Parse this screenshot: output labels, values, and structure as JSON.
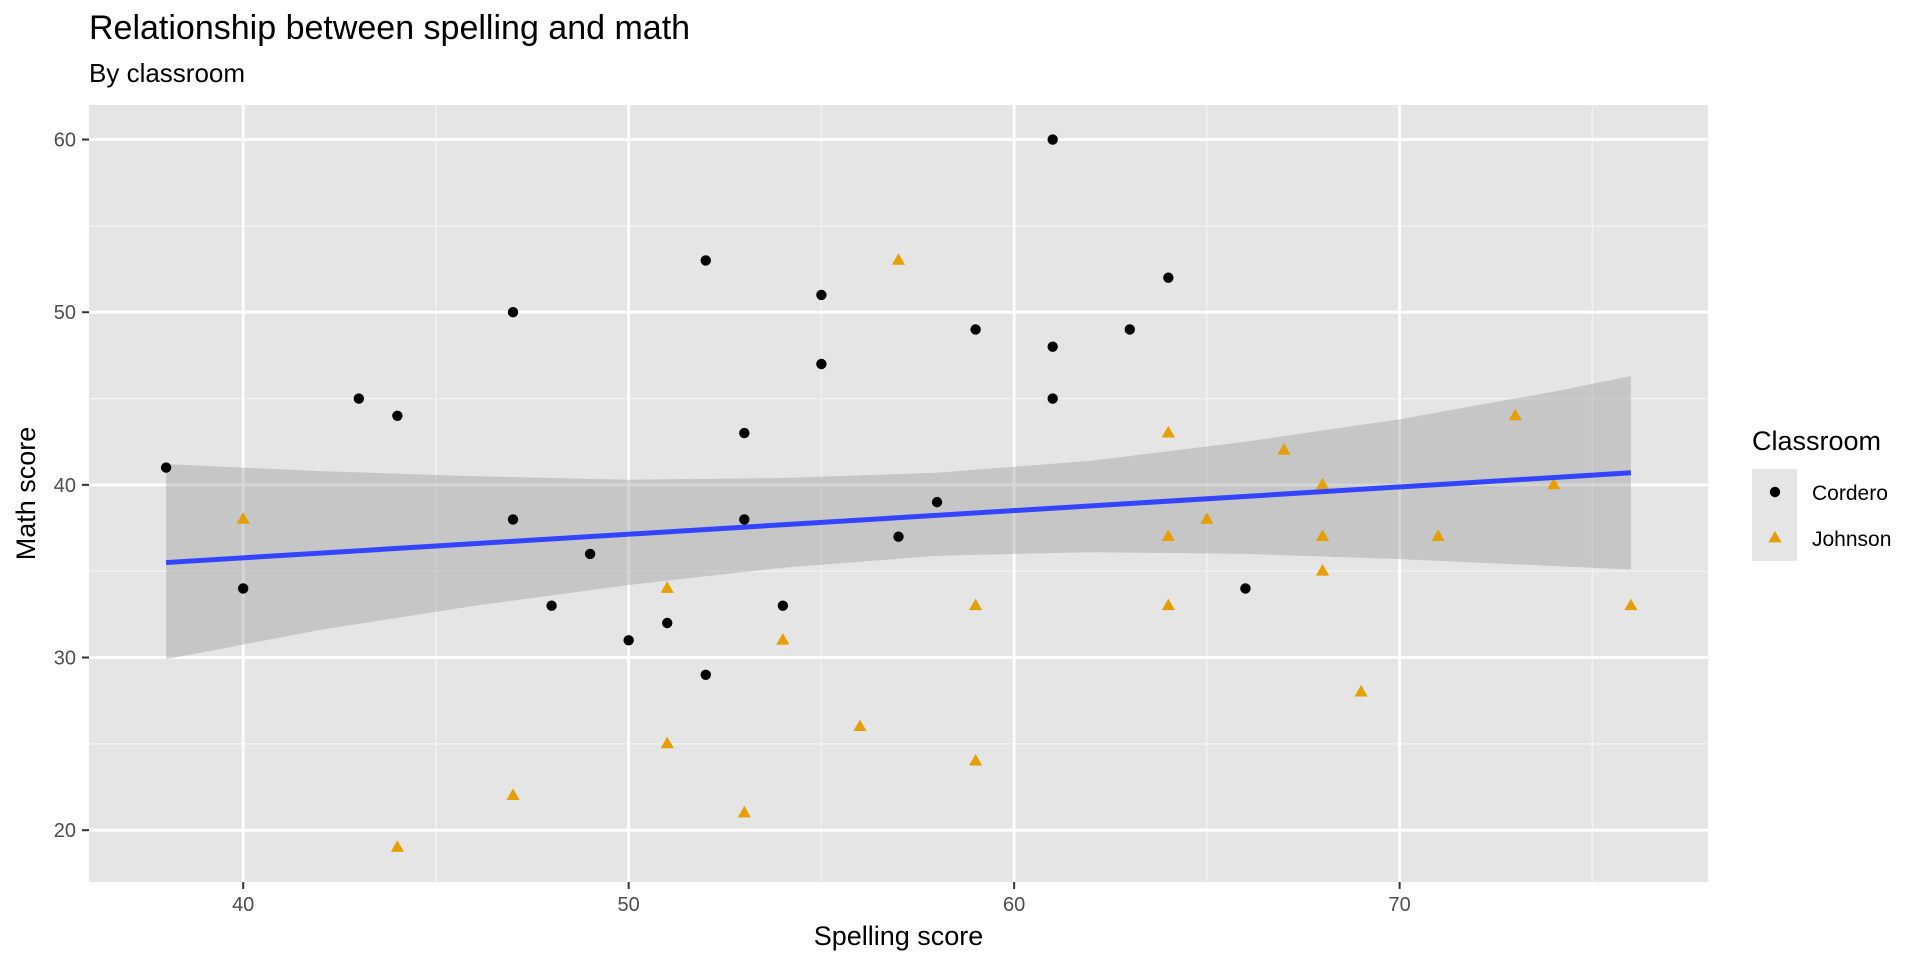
{
  "chart_data": {
    "type": "scatter",
    "title": "Relationship between spelling and math",
    "subtitle": "By classroom",
    "xlabel": "Spelling score",
    "ylabel": "Math score",
    "xlim": [
      36,
      78
    ],
    "ylim": [
      17,
      62
    ],
    "x_ticks": [
      40,
      50,
      60,
      70
    ],
    "y_ticks": [
      20,
      30,
      40,
      50,
      60
    ],
    "x_tick_labels": [
      "40",
      "50",
      "60",
      "70"
    ],
    "y_tick_labels": [
      "20",
      "30",
      "40",
      "50",
      "60"
    ],
    "grid": true,
    "legend": {
      "title": "Classroom",
      "position": "right",
      "entries": [
        {
          "label": "Cordero",
          "shape": "circle"
        },
        {
          "label": "Johnson",
          "shape": "triangle"
        }
      ]
    },
    "series": [
      {
        "name": "Cordero",
        "shape": "circle",
        "color": "#000000",
        "x": [
          38,
          40,
          43,
          44,
          47,
          47,
          48,
          49,
          50,
          51,
          52,
          52,
          53,
          53,
          54,
          55,
          55,
          57,
          58,
          59,
          61,
          61,
          61,
          63,
          64,
          66
        ],
        "y": [
          41,
          34,
          45,
          44,
          50,
          38,
          33,
          36,
          31,
          32,
          53,
          29,
          43,
          38,
          33,
          51,
          47,
          37,
          39,
          49,
          60,
          48,
          45,
          49,
          52,
          34
        ]
      },
      {
        "name": "Johnson",
        "shape": "triangle",
        "color": "#E69F00",
        "x": [
          40,
          44,
          47,
          51,
          51,
          53,
          54,
          56,
          57,
          59,
          59,
          64,
          64,
          64,
          65,
          67,
          68,
          68,
          68,
          69,
          71,
          73,
          74,
          76
        ],
        "y": [
          38,
          19,
          22,
          34,
          25,
          21,
          31,
          26,
          53,
          33,
          24,
          43,
          37,
          33,
          38,
          42,
          40,
          37,
          35,
          28,
          37,
          44,
          40,
          33
        ]
      }
    ],
    "fit_line": {
      "method": "linear",
      "color": "#3344FF",
      "x": [
        38,
        76
      ],
      "y": [
        35.5,
        40.7
      ]
    },
    "confidence_band": {
      "fill": "#999999",
      "x": [
        38,
        42,
        46,
        50,
        54,
        58,
        62,
        66,
        70,
        74,
        76
      ],
      "upper": [
        41.2,
        40.8,
        40.5,
        40.3,
        40.4,
        40.7,
        41.4,
        42.5,
        43.8,
        45.4,
        46.3
      ],
      "lower": [
        29.9,
        31.6,
        33.0,
        34.2,
        35.2,
        35.9,
        36.1,
        36.0,
        35.7,
        35.3,
        35.1
      ]
    },
    "colors": {
      "panel_background": "#E5E5E5",
      "grid_major": "#FFFFFF",
      "cordero": "#000000",
      "johnson": "#E69F00",
      "fit_line": "#3344FF"
    }
  }
}
